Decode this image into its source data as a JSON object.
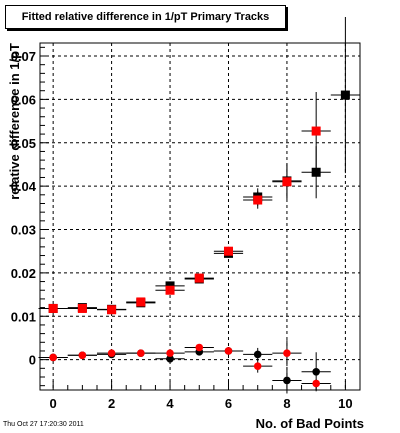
{
  "title": "Fitted relative difference in 1/pT Primary Tracks",
  "timestamp": "Thu Oct 27 17:20:30 2011",
  "chart_data": {
    "type": "scatter",
    "title": "Fitted relative difference in 1/pT Primary Tracks",
    "xlabel": "No. of Bad Points",
    "ylabel": "relative difference in 1/pT",
    "xlim": [
      -0.45,
      10.5
    ],
    "ylim": [
      -0.007,
      0.073
    ],
    "grid": true,
    "x_ticks": [
      0,
      2,
      4,
      6,
      8,
      10
    ],
    "y_ticks": [
      0,
      0.01,
      0.02,
      0.03,
      0.04,
      0.05,
      0.06,
      0.07
    ],
    "y_tick_labels": [
      "0",
      "0.01",
      "0.02",
      "0.03",
      "0.04",
      "0.05",
      "0.06",
      "0.07"
    ],
    "series": [
      {
        "marker": "square",
        "color": "#000000",
        "points": [
          {
            "x": 0,
            "y": 0.0118,
            "xerr": 0.5,
            "yerr": 0.0004
          },
          {
            "x": 1,
            "y": 0.012,
            "xerr": 0.5,
            "yerr": 0.0004
          },
          {
            "x": 2,
            "y": 0.0116,
            "xerr": 0.5,
            "yerr": 0.0004
          },
          {
            "x": 3,
            "y": 0.0131,
            "xerr": 0.5,
            "yerr": 0.0005
          },
          {
            "x": 4,
            "y": 0.017,
            "xerr": 0.5,
            "yerr": 0.0006
          },
          {
            "x": 5,
            "y": 0.0186,
            "xerr": 0.5,
            "yerr": 0.0007
          },
          {
            "x": 6,
            "y": 0.0245,
            "xerr": 0.5,
            "yerr": 0.001
          },
          {
            "x": 7,
            "y": 0.0375,
            "xerr": 0.5,
            "yerr": 0.002
          },
          {
            "x": 8,
            "y": 0.0412,
            "xerr": 0.5,
            "yerr": 0.004
          },
          {
            "x": 9,
            "y": 0.0432,
            "xerr": 0.5,
            "yerr": 0.006
          },
          {
            "x": 10,
            "y": 0.061,
            "xerr": 0.5,
            "yerr": 0.018
          }
        ]
      },
      {
        "marker": "square",
        "color": "#ff0000",
        "points": [
          {
            "x": 0,
            "y": 0.0118,
            "xerr": 0.5,
            "yerr": 0.0004
          },
          {
            "x": 1,
            "y": 0.0118,
            "xerr": 0.5,
            "yerr": 0.0004
          },
          {
            "x": 2,
            "y": 0.0115,
            "xerr": 0.5,
            "yerr": 0.0004
          },
          {
            "x": 3,
            "y": 0.0133,
            "xerr": 0.5,
            "yerr": 0.0005
          },
          {
            "x": 4,
            "y": 0.016,
            "xerr": 0.5,
            "yerr": 0.0006
          },
          {
            "x": 5,
            "y": 0.0188,
            "xerr": 0.5,
            "yerr": 0.0007
          },
          {
            "x": 6,
            "y": 0.025,
            "xerr": 0.5,
            "yerr": 0.001
          },
          {
            "x": 7,
            "y": 0.0368,
            "xerr": 0.5,
            "yerr": 0.002
          },
          {
            "x": 8,
            "y": 0.041,
            "xerr": 0.5,
            "yerr": 0.004
          },
          {
            "x": 9,
            "y": 0.0527,
            "xerr": 0.5,
            "yerr": 0.009
          }
        ]
      },
      {
        "marker": "circle",
        "color": "#000000",
        "points": [
          {
            "x": 0,
            "y": 0.0005,
            "xerr": 0.5,
            "yerr": 0.0004
          },
          {
            "x": 1,
            "y": 0.001,
            "xerr": 0.5,
            "yerr": 0.0004
          },
          {
            "x": 2,
            "y": 0.0012,
            "xerr": 0.5,
            "yerr": 0.0004
          },
          {
            "x": 3,
            "y": 0.0015,
            "xerr": 0.5,
            "yerr": 0.0005
          },
          {
            "x": 4,
            "y": 0.0002,
            "xerr": 0.5,
            "yerr": 0.0006
          },
          {
            "x": 5,
            "y": 0.0018,
            "xerr": 0.5,
            "yerr": 0.0007
          },
          {
            "x": 6,
            "y": 0.002,
            "xerr": 0.5,
            "yerr": 0.0009
          },
          {
            "x": 7,
            "y": 0.0012,
            "xerr": 0.5,
            "yerr": 0.0015
          },
          {
            "x": 8,
            "y": -0.0048,
            "xerr": 0.5,
            "yerr": 0.003
          },
          {
            "x": 9,
            "y": -0.0028,
            "xerr": 0.5,
            "yerr": 0.0045
          }
        ]
      },
      {
        "marker": "circle",
        "color": "#ff0000",
        "points": [
          {
            "x": 0,
            "y": 0.0005,
            "xerr": 0.5,
            "yerr": 0.0004
          },
          {
            "x": 1,
            "y": 0.001,
            "xerr": 0.5,
            "yerr": 0.0004
          },
          {
            "x": 2,
            "y": 0.0015,
            "xerr": 0.5,
            "yerr": 0.0004
          },
          {
            "x": 3,
            "y": 0.0015,
            "xerr": 0.5,
            "yerr": 0.0005
          },
          {
            "x": 4,
            "y": 0.0015,
            "xerr": 0.5,
            "yerr": 0.0006
          },
          {
            "x": 5,
            "y": 0.0028,
            "xerr": 0.5,
            "yerr": 0.0007
          },
          {
            "x": 6,
            "y": 0.002,
            "xerr": 0.5,
            "yerr": 0.0009
          },
          {
            "x": 7,
            "y": -0.0015,
            "xerr": 0.5,
            "yerr": 0.0015
          },
          {
            "x": 8,
            "y": 0.0015,
            "xerr": 0.5,
            "yerr": 0.003
          },
          {
            "x": 9,
            "y": -0.0055,
            "xerr": 0.5,
            "yerr": 0.001
          }
        ]
      }
    ]
  }
}
